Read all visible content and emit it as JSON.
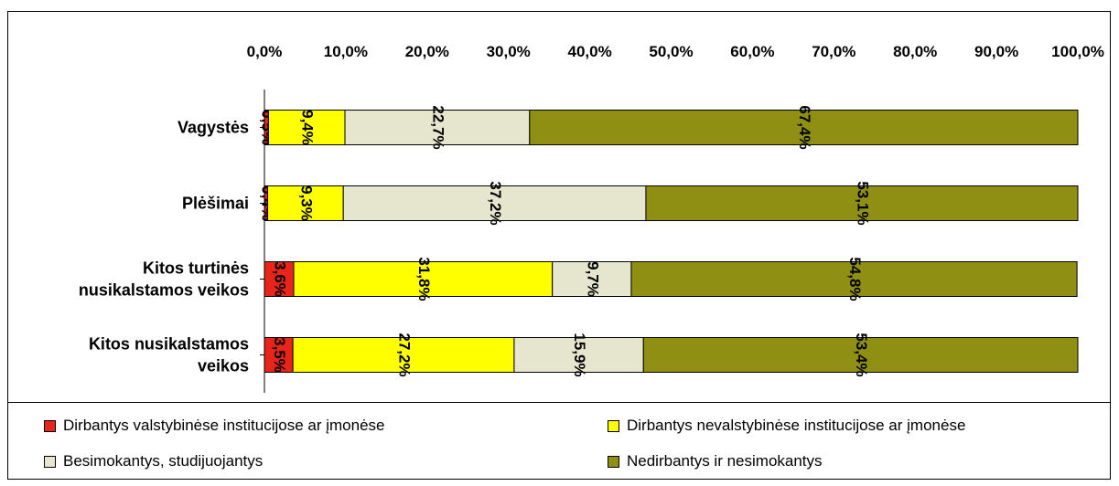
{
  "chart_data": {
    "type": "bar",
    "orientation": "horizontal",
    "stacked": true,
    "categories": [
      [
        "Vagystės"
      ],
      [
        "Plėšimai"
      ],
      [
        "Kitos turtinės",
        "nusikalstamos veikos"
      ],
      [
        "Kitos nusikalstamos",
        "veikos"
      ]
    ],
    "series": [
      {
        "name": "Dirbantys valstybinėse institucijose ar įmonėse",
        "color": "#e8241b",
        "values": [
          0.5,
          0.4,
          3.6,
          3.5
        ],
        "labels": [
          "0,5%",
          "0,4%",
          "3,6%",
          "3,5%"
        ]
      },
      {
        "name": "Dirbantys nevalstybinėse institucijose ar įmonėse",
        "color": "#ffff00",
        "values": [
          9.4,
          9.3,
          31.8,
          27.2
        ],
        "labels": [
          "9,4%",
          "9,3%",
          "31,8%",
          "27,2%"
        ]
      },
      {
        "name": "Besimokantys, studijuojantys",
        "color": "#e6e6cf",
        "values": [
          22.7,
          37.2,
          9.7,
          15.9
        ],
        "labels": [
          "22,7%",
          "37,2%",
          "9,7%",
          "15,9%"
        ]
      },
      {
        "name": "Nedirbantys ir nesimokantys",
        "color": "#8f8f14",
        "values": [
          67.4,
          53.1,
          54.8,
          53.4
        ],
        "labels": [
          "67,4%",
          "53,1%",
          "54,8%",
          "53,4%"
        ]
      }
    ],
    "xlim": [
      0,
      100
    ],
    "ticks": [
      "0,0%",
      "10,0%",
      "20,0%",
      "30,0%",
      "40,0%",
      "50,0%",
      "60,0%",
      "70,0%",
      "80,0%",
      "90,0%",
      "100,0%"
    ],
    "axis_position": "top",
    "grid": false,
    "legend_position": "bottom"
  }
}
